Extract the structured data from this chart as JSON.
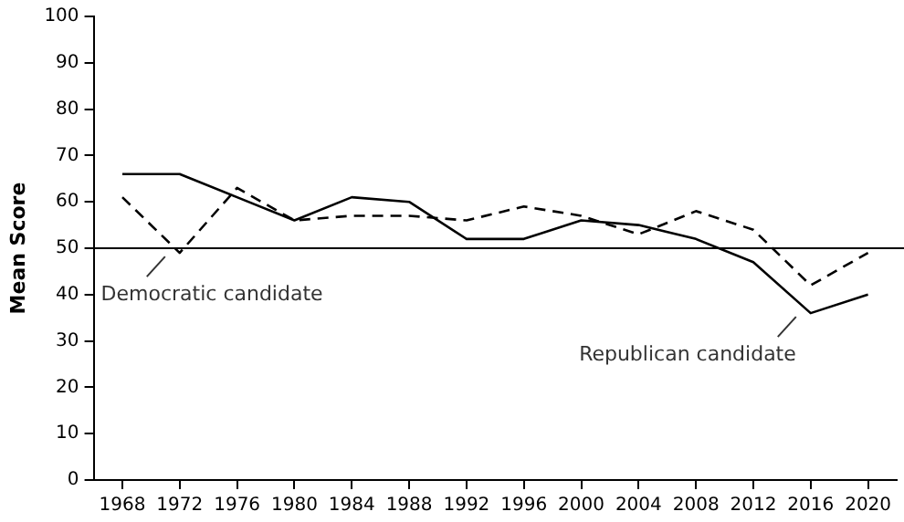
{
  "chart_data": {
    "type": "line",
    "ylabel": "Mean Score",
    "categories": [
      "1968",
      "1972",
      "1976",
      "1980",
      "1984",
      "1988",
      "1992",
      "1996",
      "2000",
      "2004",
      "2008",
      "2012",
      "2016",
      "2020"
    ],
    "series": [
      {
        "color": "#000000",
        "line_style": "solid",
        "values": [
          66,
          66,
          61,
          56,
          61,
          60,
          52,
          52,
          56,
          55,
          52,
          47,
          36,
          40
        ]
      },
      {
        "color": "#000000",
        "line_style": "dashed",
        "values": [
          61,
          49,
          63,
          56,
          57,
          57,
          56,
          59,
          57,
          53,
          58,
          54,
          42,
          49
        ]
      }
    ],
    "ylim": [
      0,
      100
    ],
    "yticks": [
      0,
      10,
      20,
      30,
      40,
      50,
      60,
      70,
      80,
      90,
      100
    ],
    "ref_lines": [
      {
        "axis": "y",
        "value": 50,
        "color": "#000000"
      }
    ],
    "annotations": [
      {
        "text": "Democratic candidate",
        "x": "1972",
        "y": 49
      },
      {
        "text": "Republican candidate",
        "x": "2016",
        "y": 36
      }
    ],
    "grid": false,
    "legend": false,
    "marker": "none"
  }
}
